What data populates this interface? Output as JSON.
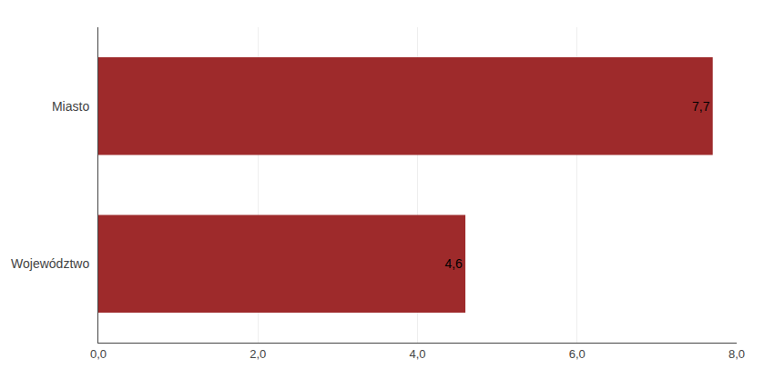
{
  "chart_data": {
    "type": "bar",
    "orientation": "horizontal",
    "categories": [
      "Województwo",
      "Miasto"
    ],
    "values": [
      4.6,
      7.7
    ],
    "value_labels": [
      "4,6",
      "7,7"
    ],
    "data_labels": true,
    "color": "#9e2a2b",
    "xlim": [
      0,
      8.0
    ],
    "xticks": [
      {
        "value": 0.0,
        "label": "0,0"
      },
      {
        "value": 2.0,
        "label": "2,0"
      },
      {
        "value": 4.0,
        "label": "4,0"
      },
      {
        "value": 6.0,
        "label": "6,0"
      },
      {
        "value": 8.0,
        "label": "8,0"
      }
    ],
    "grid": true
  }
}
